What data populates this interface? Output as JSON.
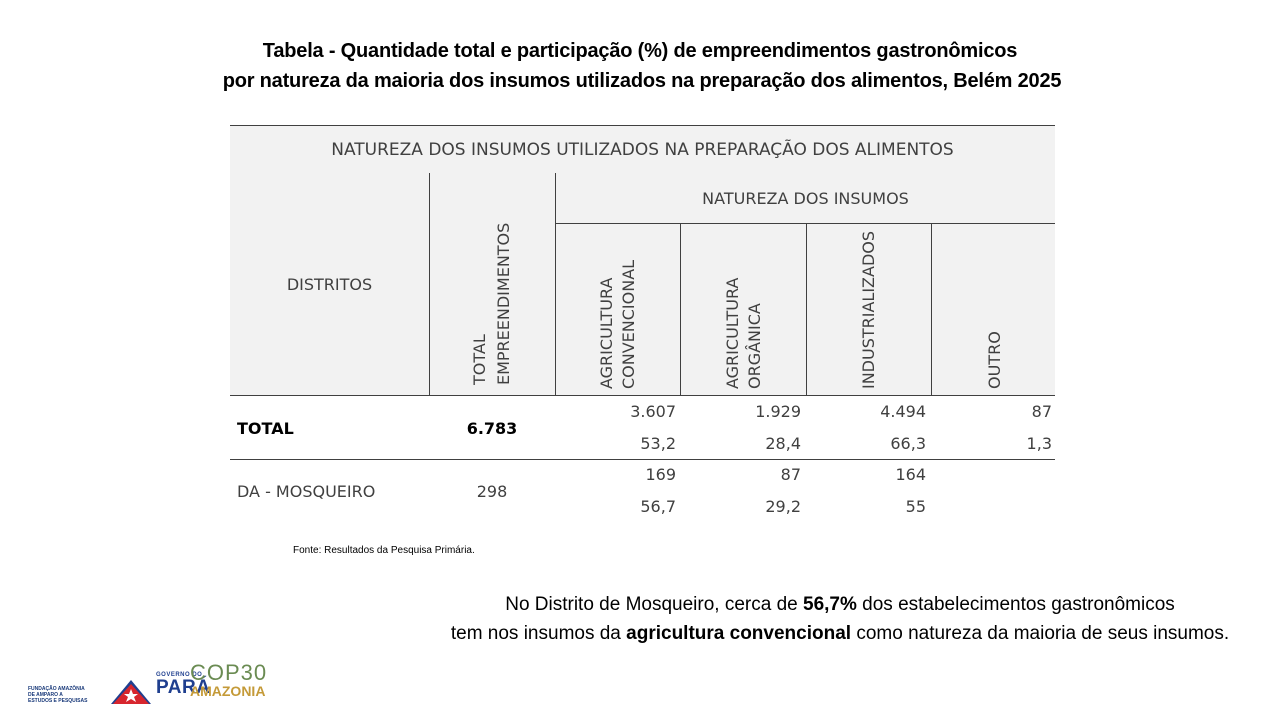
{
  "title": {
    "line1": "Tabela - Quantidade total e participação (%) de empreendimentos gastronômicos",
    "line2": "por natureza da maioria dos insumos utilizados na preparação dos alimentos, Belém 2025"
  },
  "table": {
    "header_main": "NATUREZA DOS INSUMOS UTILIZADOS NA PREPARAÇÃO DOS ALIMENTOS",
    "col_distritos": "DISTRITOS",
    "col_total_line1": "TOTAL",
    "col_total_line2": "EMPREENDIMENTOS",
    "group_natureza": "NATUREZA DOS INSUMOS",
    "col_agric_conv_line1": "AGRICULTURA",
    "col_agric_conv_line2": "CONVENCIONAL",
    "col_agric_org_line1": "AGRICULTURA",
    "col_agric_org_line2": "ORGÂNICA",
    "col_industrializados": "INDUSTRIALIZADOS",
    "col_outro": "OUTRO",
    "rows": [
      {
        "district": "TOTAL",
        "total": "6.783",
        "qty": [
          "3.607",
          "1.929",
          "4.494",
          "87"
        ],
        "pct": [
          "53,2",
          "28,4",
          "66,3",
          "1,3"
        ]
      },
      {
        "district": "DA - MOSQUEIRO",
        "total": "298",
        "qty": [
          "169",
          "87",
          "164",
          ""
        ],
        "pct": [
          "56,7",
          "29,2",
          "55",
          ""
        ]
      }
    ]
  },
  "source": "Fonte: Resultados da Pesquisa Primária.",
  "note": {
    "part1": "No Distrito de Mosqueiro, cerca de ",
    "bold1": "56,7%",
    "part2": " dos estabelecimentos gastronômicos",
    "part3": "tem nos insumos da ",
    "bold2": "agricultura convencional",
    "part4": " como natureza da maioria de seus insumos."
  },
  "logos": {
    "fapespa": "FUNDAÇÃO AMAZÔNIA DE AMPARO A ESTUDOS E PESQUISAS",
    "gov_small": "GOVERNO DO",
    "gov_big": "PARÁ",
    "cop_line1": "COP30",
    "cop_line2": "AMAZONIA",
    "brand_blue": "#1f3f8f",
    "brand_red": "#d7262e",
    "cop_green": "#6a8b52",
    "cop_gold": "#c49a38"
  }
}
